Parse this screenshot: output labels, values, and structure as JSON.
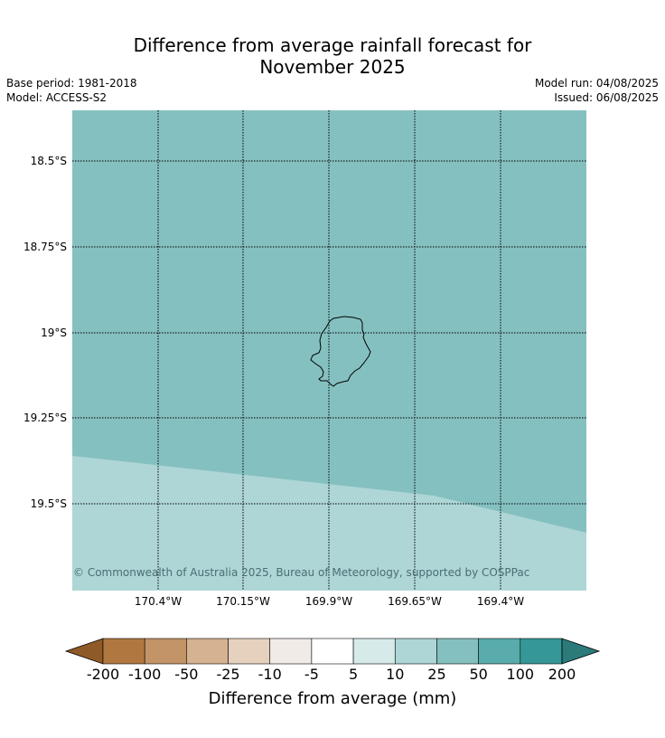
{
  "title_line1": "Difference from average rainfall forecast for",
  "title_line2": "November 2025",
  "base_period": "Base period: 1981-2018",
  "model": "Model: ACCESS-S2",
  "model_run": "Model run: 04/08/2025",
  "issued": "Issued: 06/08/2025",
  "copyright": "© Commonwealth of Australia 2025, Bureau of Meteorology, supported by COSPPac",
  "lat_labels": [
    "18.5°S",
    "18.75°S",
    "19°S",
    "19.25°S",
    "19.5°S"
  ],
  "lon_labels": [
    "170.4°W",
    "170.15°W",
    "169.9°W",
    "169.65°W",
    "169.4°W"
  ],
  "colorbar": {
    "title": "Difference from average (mm)",
    "tick_labels": [
      "-200",
      "-100",
      "-50",
      "-25",
      "-10",
      "-5",
      "5",
      "10",
      "25",
      "50",
      "100",
      "200"
    ],
    "colors": [
      "#8f5a27",
      "#b07840",
      "#c39468",
      "#d5b290",
      "#e6d1bf",
      "#f0ebe7",
      "#ffffff",
      "#d6eaea",
      "#aed6d6",
      "#85c0c0",
      "#5aabab",
      "#359797",
      "#2c7a7a"
    ]
  },
  "map_colors": {
    "main_region": "#85c0c0",
    "south_region": "#aed6d6"
  }
}
